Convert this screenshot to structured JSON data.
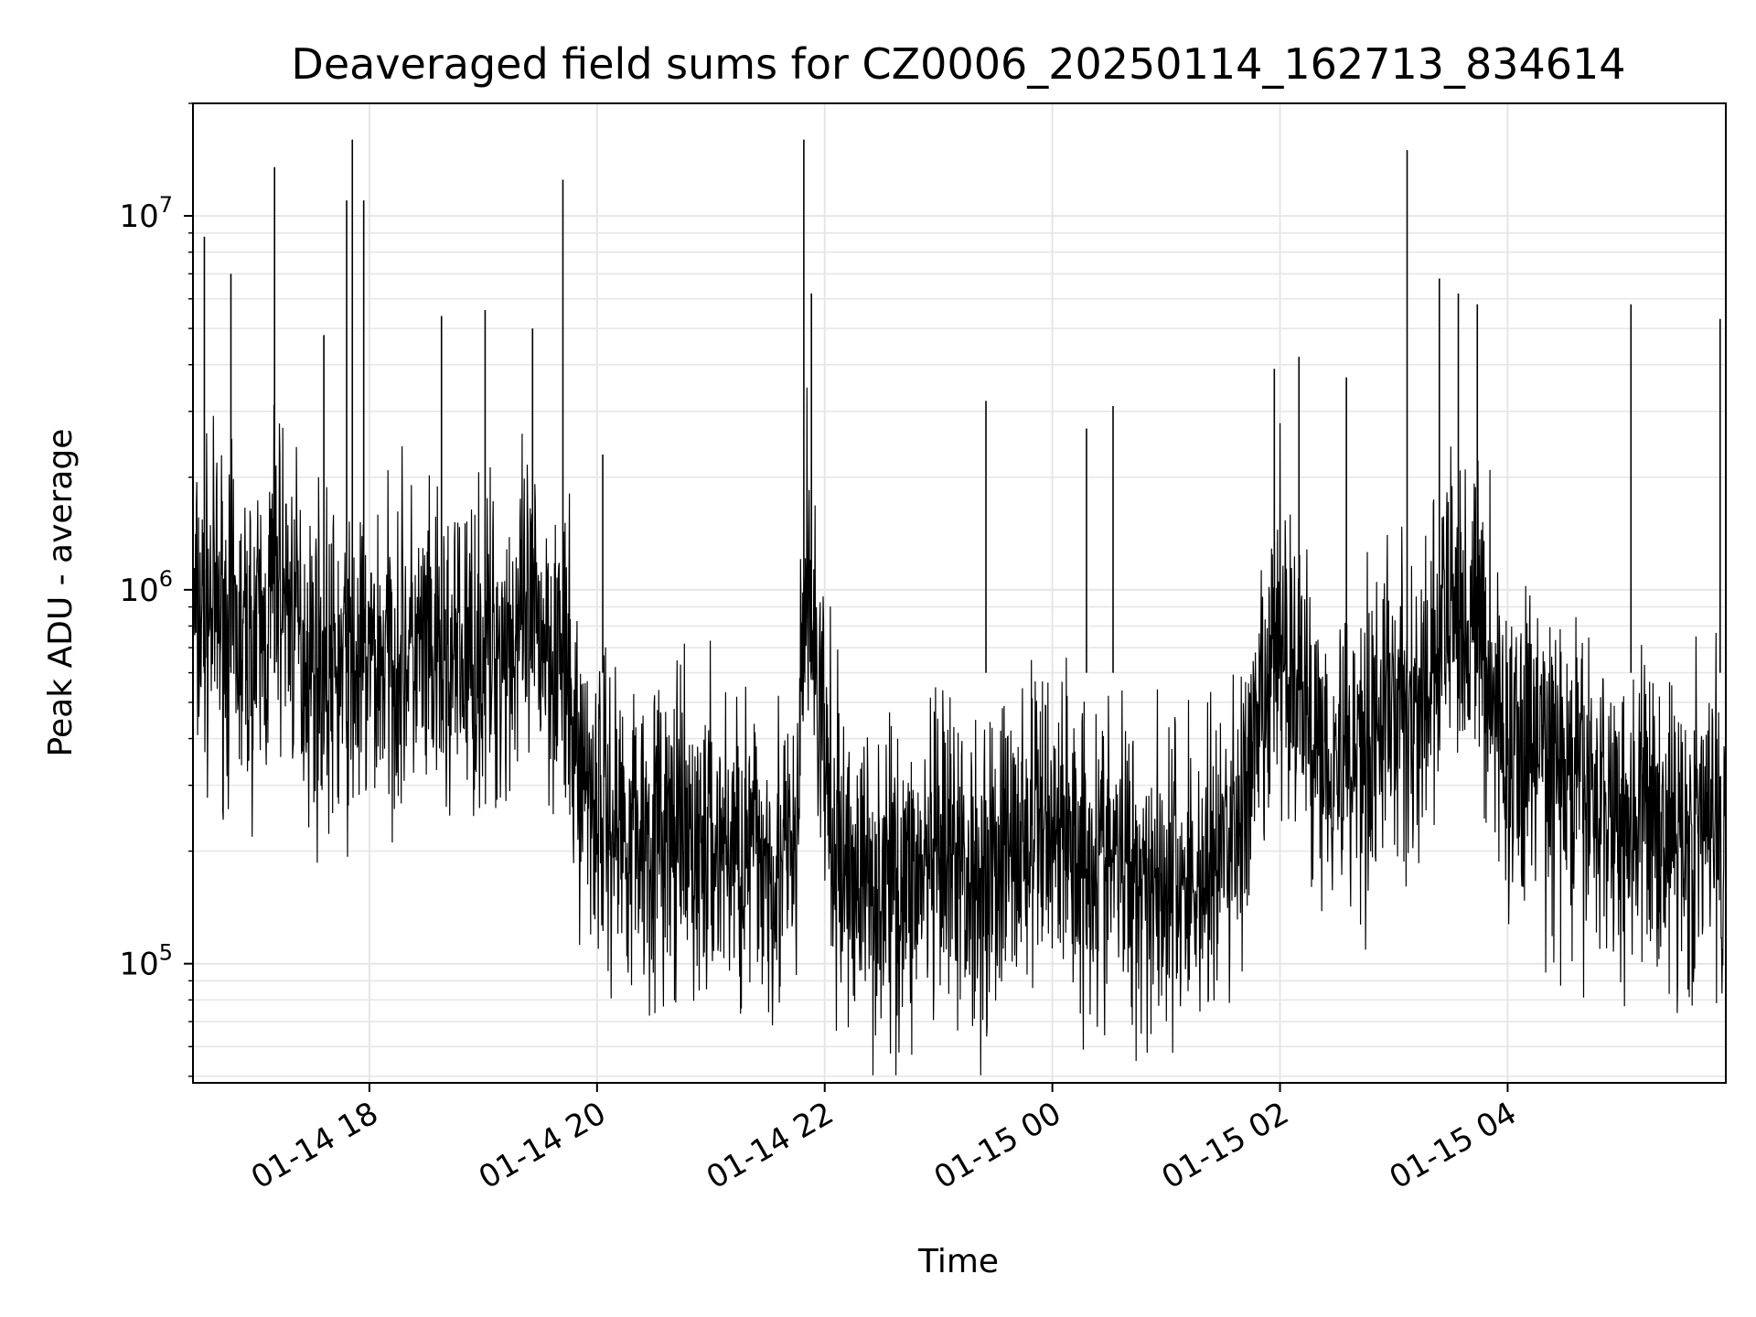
{
  "chart_data": {
    "type": "line",
    "title": "Deaveraged field sums for CZ0006_20250114_162713_834614",
    "xlabel": "Time",
    "ylabel": "Peak ADU - average",
    "y_scale": "log",
    "xlim": [
      "2025-01-14 16:27",
      "2025-01-15 05:55"
    ],
    "ylim": [
      48000,
      20000000
    ],
    "x_ticks": [
      {
        "value": "2025-01-14 18:00",
        "label": "01-14 18"
      },
      {
        "value": "2025-01-14 20:00",
        "label": "01-14 20"
      },
      {
        "value": "2025-01-14 22:00",
        "label": "01-14 22"
      },
      {
        "value": "2025-01-15 00:00",
        "label": "01-15 00"
      },
      {
        "value": "2025-01-15 02:00",
        "label": "01-15 02"
      },
      {
        "value": "2025-01-15 04:00",
        "label": "01-15 04"
      }
    ],
    "y_ticks": [
      {
        "value": 100000,
        "base": "10",
        "exp": "5"
      },
      {
        "value": 1000000,
        "base": "10",
        "exp": "6"
      },
      {
        "value": 10000000,
        "base": "10",
        "exp": "7"
      }
    ],
    "grid": true,
    "line_color": "#000000",
    "grid_color": "#e6e6e6",
    "series": [
      {
        "x": [
          "2025-01-14 16:27",
          "2025-01-14 16:40",
          "2025-01-14 16:53",
          "2025-01-14 17:06",
          "2025-01-14 17:10",
          "2025-01-14 17:25",
          "2025-01-14 17:40",
          "2025-01-14 17:50",
          "2025-01-14 18:05",
          "2025-01-14 18:20",
          "2025-01-14 18:35",
          "2025-01-14 18:50",
          "2025-01-14 19:05",
          "2025-01-14 19:15",
          "2025-01-14 19:30",
          "2025-01-14 19:40",
          "2025-01-14 19:50",
          "2025-01-14 20:05",
          "2025-01-14 20:20",
          "2025-01-14 20:35",
          "2025-01-14 20:50",
          "2025-01-14 21:05",
          "2025-01-14 21:20",
          "2025-01-14 21:35",
          "2025-01-14 21:45",
          "2025-01-14 21:50",
          "2025-01-14 22:05",
          "2025-01-14 22:20",
          "2025-01-14 22:35",
          "2025-01-14 22:50",
          "2025-01-14 23:05",
          "2025-01-14 23:20",
          "2025-01-14 23:35",
          "2025-01-14 23:50",
          "2025-01-15 00:00",
          "2025-01-15 00:15",
          "2025-01-15 00:30",
          "2025-01-15 00:45",
          "2025-01-15 01:00",
          "2025-01-15 01:15",
          "2025-01-15 01:30",
          "2025-01-15 01:45",
          "2025-01-15 02:00",
          "2025-01-15 02:15",
          "2025-01-15 02:30",
          "2025-01-15 02:45",
          "2025-01-15 03:00",
          "2025-01-15 03:15",
          "2025-01-15 03:30",
          "2025-01-15 03:45",
          "2025-01-15 04:00",
          "2025-01-15 04:15",
          "2025-01-15 04:30",
          "2025-01-15 04:45",
          "2025-01-15 05:00",
          "2025-01-15 05:15",
          "2025-01-15 05:30",
          "2025-01-15 05:45"
        ],
        "y": [
          800000,
          900000,
          700000,
          750000,
          1200000,
          700000,
          600000,
          600000,
          650000,
          700000,
          600000,
          650000,
          700000,
          750000,
          800000,
          700000,
          350000,
          250000,
          230000,
          220000,
          200000,
          210000,
          200000,
          190000,
          180000,
          1200000,
          190000,
          170000,
          160000,
          170000,
          180000,
          170000,
          200000,
          220000,
          250000,
          200000,
          190000,
          180000,
          170000,
          160000,
          200000,
          300000,
          800000,
          450000,
          350000,
          400000,
          500000,
          450000,
          900000,
          800000,
          350000,
          400000,
          300000,
          280000,
          250000,
          250000,
          220000,
          230000
        ]
      }
    ],
    "spikes": [
      {
        "x": "2025-01-14 16:33",
        "y": 8800000
      },
      {
        "x": "2025-01-14 16:47",
        "y": 7000000
      },
      {
        "x": "2025-01-14 17:10",
        "y": 13500000
      },
      {
        "x": "2025-01-14 17:36",
        "y": 4800000
      },
      {
        "x": "2025-01-14 17:48",
        "y": 11000000
      },
      {
        "x": "2025-01-14 17:51",
        "y": 16000000
      },
      {
        "x": "2025-01-14 17:57",
        "y": 11000000
      },
      {
        "x": "2025-01-14 18:38",
        "y": 5400000
      },
      {
        "x": "2025-01-14 19:01",
        "y": 5600000
      },
      {
        "x": "2025-01-14 19:26",
        "y": 5000000
      },
      {
        "x": "2025-01-14 19:42",
        "y": 12500000
      },
      {
        "x": "2025-01-14 20:03",
        "y": 2300000
      },
      {
        "x": "2025-01-14 21:49",
        "y": 16000000
      },
      {
        "x": "2025-01-14 21:53",
        "y": 6200000
      },
      {
        "x": "2025-01-14 23:25",
        "y": 3200000
      },
      {
        "x": "2025-01-15 00:18",
        "y": 2700000
      },
      {
        "x": "2025-01-15 00:32",
        "y": 3100000
      },
      {
        "x": "2025-01-15 01:57",
        "y": 3900000
      },
      {
        "x": "2025-01-15 02:10",
        "y": 4200000
      },
      {
        "x": "2025-01-15 02:35",
        "y": 3700000
      },
      {
        "x": "2025-01-15 03:07",
        "y": 15000000
      },
      {
        "x": "2025-01-15 03:24",
        "y": 6800000
      },
      {
        "x": "2025-01-15 03:34",
        "y": 6200000
      },
      {
        "x": "2025-01-15 03:44",
        "y": 5800000
      },
      {
        "x": "2025-01-15 05:05",
        "y": 5800000
      },
      {
        "x": "2025-01-15 05:52",
        "y": 5300000
      }
    ]
  }
}
